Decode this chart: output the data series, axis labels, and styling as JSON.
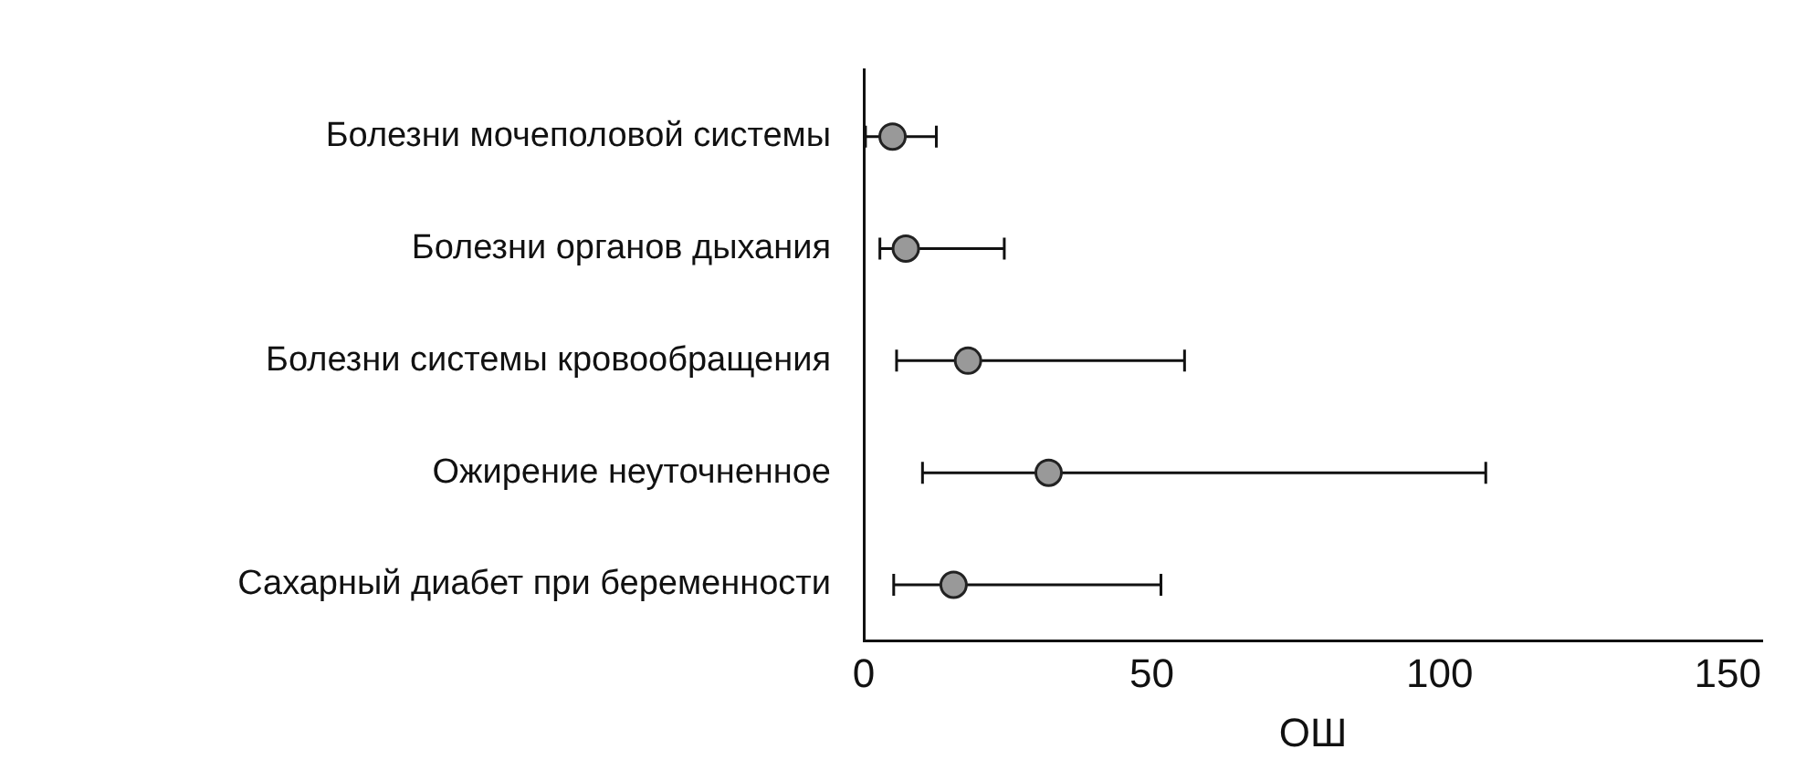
{
  "chart_data": {
    "type": "scatter",
    "orientation": "horizontal",
    "xlabel": "ОШ",
    "categories": [
      "Болезни мочеполовой системы",
      "Болезни органов дыхания",
      "Болезни системы кровообращения",
      "Ожирение неуточненное",
      "Сахарный диабет при беременности"
    ],
    "values": [
      5.0,
      7.3,
      18.1,
      32.1,
      15.6
    ],
    "errors": [
      [
        0.3,
        12.6
      ],
      [
        2.8,
        24.4
      ],
      [
        5.7,
        55.7
      ],
      [
        10.2,
        108
      ],
      [
        5.2,
        51.6
      ]
    ],
    "color": "#999999",
    "marker": "circle",
    "grid": false,
    "legend": false,
    "xlim": [
      0,
      156
    ],
    "xticks": [
      0,
      50,
      100,
      150
    ]
  }
}
